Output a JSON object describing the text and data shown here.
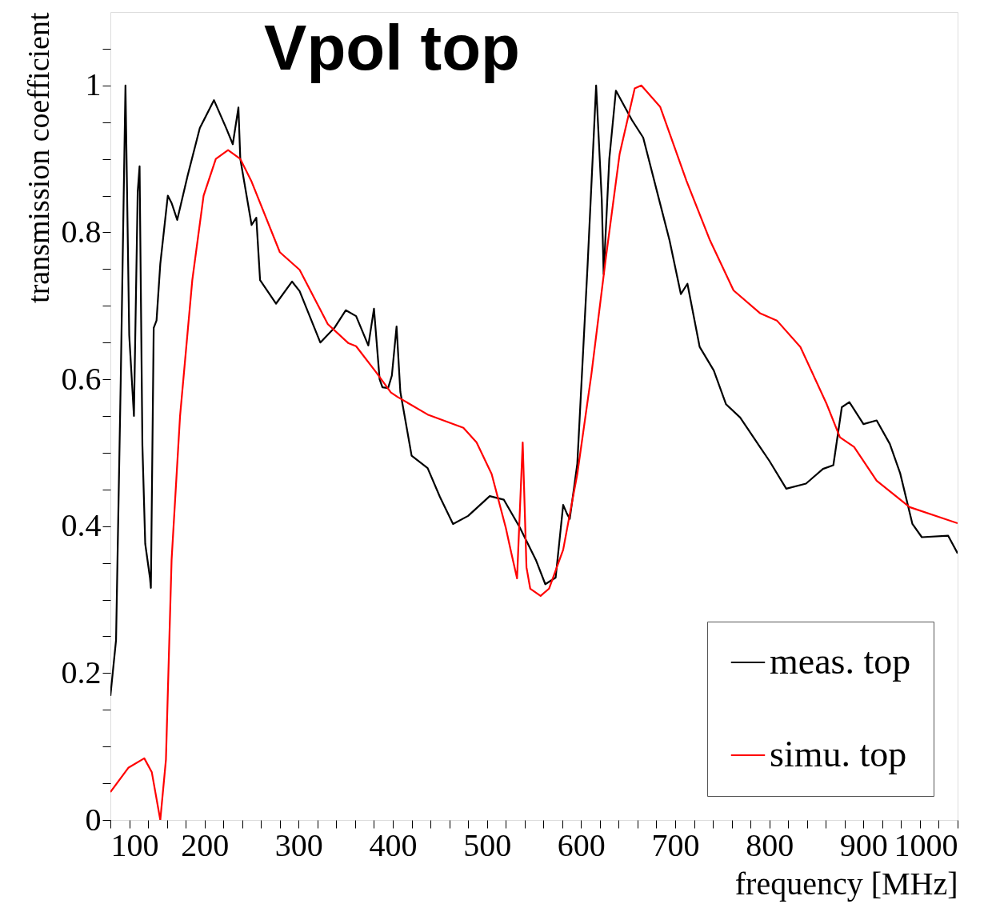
{
  "chart_data": {
    "type": "line",
    "title": "Vpol top",
    "xlabel": "frequency [MHz]",
    "ylabel": "transmission coefficient",
    "xlim": [
      100,
      1000
    ],
    "ylim": [
      0,
      1.1
    ],
    "xticks": [
      100,
      {
        "value": 120,
        "label": null
      },
      {
        "value": 140,
        "label": null
      },
      {
        "value": 160,
        "label": null
      },
      {
        "value": 180,
        "label": null
      },
      200,
      {
        "value": 220,
        "label": null
      },
      {
        "value": 240,
        "label": null
      },
      {
        "value": 260,
        "label": null
      },
      {
        "value": 280,
        "label": null
      },
      300,
      {
        "value": 320,
        "label": null
      },
      {
        "value": 340,
        "label": null
      },
      {
        "value": 360,
        "label": null
      },
      {
        "value": 380,
        "label": null
      },
      400,
      {
        "value": 420,
        "label": null
      },
      {
        "value": 440,
        "label": null
      },
      {
        "value": 460,
        "label": null
      },
      {
        "value": 480,
        "label": null
      },
      500,
      {
        "value": 520,
        "label": null
      },
      {
        "value": 540,
        "label": null
      },
      {
        "value": 560,
        "label": null
      },
      {
        "value": 580,
        "label": null
      },
      600,
      {
        "value": 620,
        "label": null
      },
      {
        "value": 640,
        "label": null
      },
      {
        "value": 660,
        "label": null
      },
      {
        "value": 680,
        "label": null
      },
      700,
      {
        "value": 720,
        "label": null
      },
      {
        "value": 740,
        "label": null
      },
      {
        "value": 760,
        "label": null
      },
      {
        "value": 780,
        "label": null
      },
      800,
      {
        "value": 820,
        "label": null
      },
      {
        "value": 840,
        "label": null
      },
      {
        "value": 860,
        "label": null
      },
      {
        "value": 880,
        "label": null
      },
      900,
      {
        "value": 920,
        "label": null
      },
      {
        "value": 940,
        "label": null
      },
      {
        "value": 960,
        "label": null
      },
      {
        "value": 980,
        "label": null
      },
      1000
    ],
    "yticks": [
      0,
      {
        "value": 0.05,
        "label": null
      },
      {
        "value": 0.1,
        "label": null
      },
      {
        "value": 0.15,
        "label": null
      },
      0.2,
      {
        "value": 0.25,
        "label": null
      },
      {
        "value": 0.3,
        "label": null
      },
      {
        "value": 0.35,
        "label": null
      },
      0.4,
      {
        "value": 0.45,
        "label": null
      },
      {
        "value": 0.5,
        "label": null
      },
      {
        "value": 0.55,
        "label": null
      },
      0.6,
      {
        "value": 0.65,
        "label": null
      },
      {
        "value": 0.7,
        "label": null
      },
      {
        "value": 0.75,
        "label": null
      },
      0.8,
      {
        "value": 0.85,
        "label": null
      },
      {
        "value": 0.9,
        "label": null
      },
      {
        "value": 0.95,
        "label": null
      },
      1,
      {
        "value": 1.05,
        "label": null
      }
    ],
    "grid": false,
    "legend": "bottom right",
    "line_style": "solid",
    "marker": "none",
    "series": [
      {
        "name": "meas. top",
        "color": "#000000",
        "x": [
          100,
          106,
          111,
          116,
          120,
          125,
          129,
          131,
          134,
          137,
          142,
          143,
          146,
          149,
          153,
          161,
          165,
          171,
          182,
          195,
          210,
          223,
          230,
          236,
          238,
          250,
          255,
          259,
          276,
          293,
          301,
          323,
          338,
          350,
          361,
          374,
          380,
          386,
          389,
          395,
          399,
          404,
          408,
          420,
          437,
          450,
          464,
          480,
          503,
          518,
          535,
          552,
          562,
          573,
          581,
          585,
          588,
          596,
          607,
          616,
          622,
          624,
          630,
          637,
          654,
          666,
          684,
          694,
          706,
          713,
          726,
          741,
          754,
          769,
          790,
          800,
          818,
          839,
          857,
          868,
          877,
          885,
          900,
          914,
          928,
          939,
          952,
          962,
          990,
          1000
        ],
        "values": [
          0.169,
          0.245,
          0.6,
          1.0,
          0.66,
          0.55,
          0.855,
          0.89,
          0.51,
          0.376,
          0.33,
          0.316,
          0.67,
          0.68,
          0.757,
          0.85,
          0.84,
          0.817,
          0.877,
          0.942,
          0.98,
          0.942,
          0.92,
          0.97,
          0.9,
          0.81,
          0.82,
          0.735,
          0.703,
          0.733,
          0.72,
          0.65,
          0.67,
          0.694,
          0.686,
          0.646,
          0.696,
          0.6,
          0.589,
          0.588,
          0.605,
          0.672,
          0.583,
          0.496,
          0.479,
          0.44,
          0.403,
          0.414,
          0.441,
          0.436,
          0.398,
          0.354,
          0.321,
          0.33,
          0.429,
          0.417,
          0.41,
          0.485,
          0.757,
          1.0,
          0.844,
          0.743,
          0.9,
          0.993,
          0.953,
          0.929,
          0.839,
          0.789,
          0.716,
          0.73,
          0.644,
          0.612,
          0.566,
          0.548,
          0.508,
          0.489,
          0.451,
          0.458,
          0.478,
          0.483,
          0.562,
          0.569,
          0.539,
          0.544,
          0.512,
          0.472,
          0.403,
          0.385,
          0.387,
          0.363
        ]
      },
      {
        "name": "simu. top",
        "color": "#ff0000",
        "x": [
          100,
          119,
          136,
          144,
          153,
          159,
          165,
          174,
          187,
          199,
          212,
          225,
          238,
          250,
          280,
          301,
          331,
          353,
          361,
          382,
          398,
          405,
          437,
          475,
          489,
          505,
          520,
          526,
          532,
          538,
          542,
          546,
          557,
          566,
          581,
          596,
          611,
          626,
          641,
          657,
          664,
          684,
          712,
          737,
          762,
          790,
          808,
          833,
          861,
          875,
          890,
          914,
          949,
          1000
        ],
        "values": [
          0.038,
          0.071,
          0.084,
          0.065,
          0.0,
          0.082,
          0.354,
          0.55,
          0.735,
          0.85,
          0.9,
          0.912,
          0.9,
          0.869,
          0.773,
          0.749,
          0.675,
          0.649,
          0.645,
          0.61,
          0.582,
          0.576,
          0.552,
          0.534,
          0.514,
          0.471,
          0.398,
          0.363,
          0.329,
          0.514,
          0.344,
          0.315,
          0.305,
          0.315,
          0.368,
          0.471,
          0.607,
          0.762,
          0.907,
          0.996,
          1.0,
          0.971,
          0.87,
          0.789,
          0.721,
          0.69,
          0.68,
          0.644,
          0.566,
          0.521,
          0.508,
          0.462,
          0.426,
          0.404
        ]
      }
    ]
  }
}
